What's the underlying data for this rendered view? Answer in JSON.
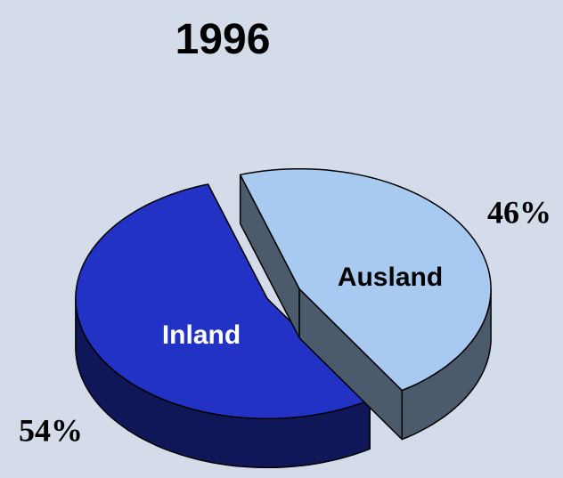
{
  "chart_data": {
    "type": "pie",
    "title": "1996",
    "categories": [
      "Inland",
      "Ausland"
    ],
    "values": [
      54,
      46
    ],
    "value_labels": [
      "54%",
      "46%"
    ],
    "colors": [
      "#2232c4",
      "#a8caf0"
    ]
  }
}
